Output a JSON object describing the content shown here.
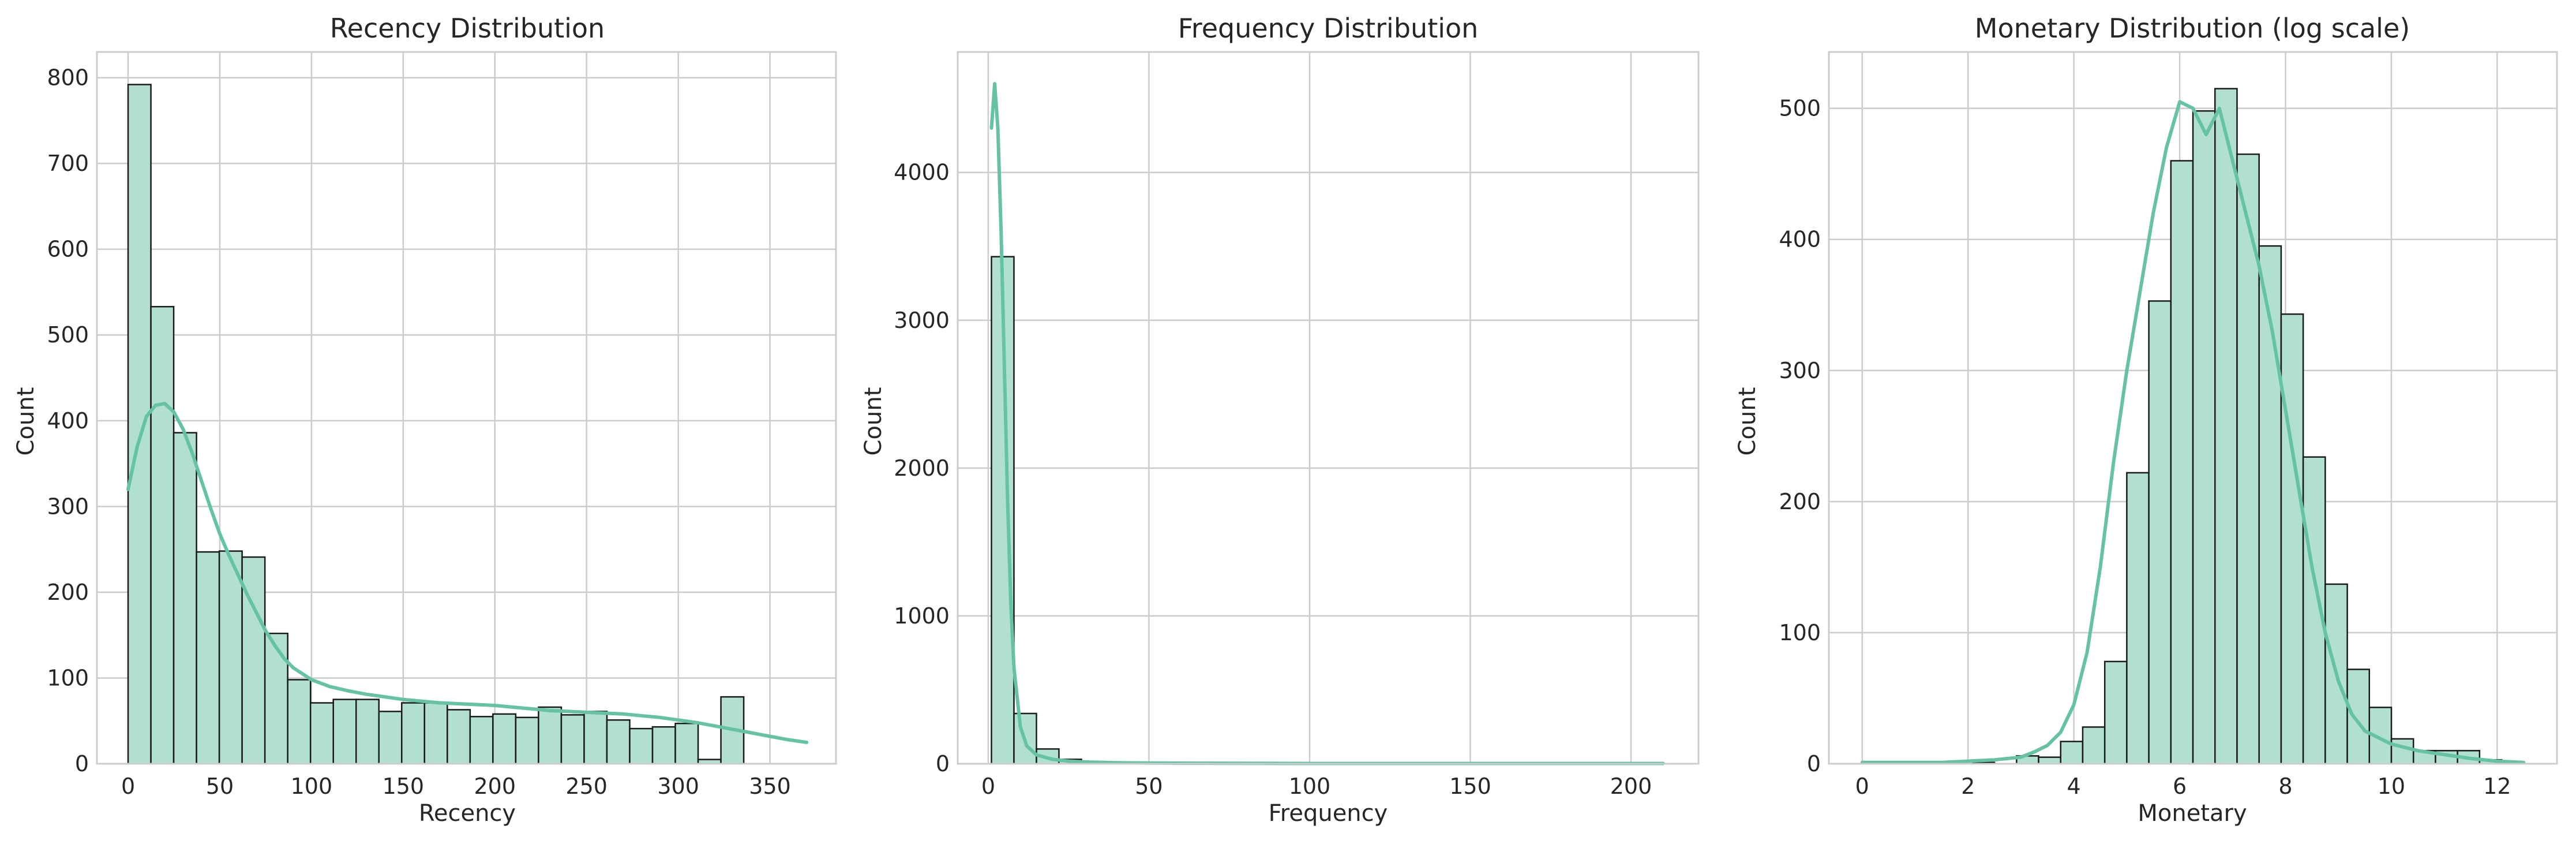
{
  "colors": {
    "bar_fill": "#b2e0cf",
    "bar_edge": "#1a1a1a",
    "kde": "#66c2a5",
    "grid": "#cccccc"
  },
  "chart_data": [
    {
      "type": "bar",
      "title": "Recency Distribution",
      "xlabel": "Recency",
      "ylabel": "Count",
      "xlim": [
        -17,
        386
      ],
      "ylim": [
        0,
        830
      ],
      "xticks": [
        0,
        50,
        100,
        150,
        200,
        250,
        300,
        350
      ],
      "yticks": [
        0,
        100,
        200,
        300,
        400,
        500,
        600,
        700,
        800
      ],
      "grid": true,
      "bins": {
        "start": 0,
        "width": 12.4333
      },
      "values": [
        792,
        533,
        386,
        247,
        248,
        241,
        152,
        98,
        71,
        75,
        75,
        61,
        71,
        71,
        63,
        55,
        58,
        54,
        66,
        57,
        61,
        51,
        41,
        43,
        47,
        5,
        78
      ],
      "kde": {
        "x": [
          0,
          5,
          10,
          15,
          20,
          25,
          30,
          35,
          40,
          45,
          50,
          55,
          60,
          65,
          70,
          75,
          80,
          85,
          90,
          100,
          110,
          120,
          130,
          140,
          150,
          160,
          170,
          180,
          190,
          200,
          210,
          220,
          230,
          240,
          250,
          260,
          270,
          280,
          290,
          300,
          310,
          320,
          330,
          340,
          350,
          360,
          370
        ],
        "y": [
          320,
          370,
          405,
          418,
          420,
          410,
          390,
          362,
          330,
          298,
          268,
          243,
          220,
          197,
          176,
          155,
          138,
          123,
          112,
          98,
          90,
          85,
          81,
          78,
          75,
          73,
          71,
          70,
          69,
          68,
          66,
          64,
          62,
          61,
          60,
          59,
          58,
          56,
          54,
          51,
          48,
          44,
          40,
          36,
          32,
          28,
          25
        ]
      }
    },
    {
      "type": "bar",
      "title": "Frequency Distribution",
      "xlabel": "Frequency",
      "ylabel": "Count",
      "xlim": [
        -9.5,
        221
      ],
      "ylim": [
        0,
        4815
      ],
      "xticks": [
        0,
        50,
        100,
        150,
        200
      ],
      "yticks": [
        0,
        1000,
        2000,
        3000,
        4000
      ],
      "grid": true,
      "bins": {
        "start": 1,
        "width": 7.0
      },
      "values": [
        3430,
        340,
        100,
        30,
        15,
        10,
        6,
        4,
        3,
        2,
        2,
        1,
        1,
        1,
        1,
        1,
        1,
        1,
        0,
        0,
        1,
        0,
        0,
        0,
        0,
        0,
        0,
        0,
        0,
        1
      ],
      "kde": {
        "x": [
          1,
          1.5,
          2,
          3,
          4,
          5,
          6,
          7,
          8,
          10,
          12,
          15,
          20,
          25,
          30,
          40,
          50,
          60,
          80,
          100,
          120,
          150,
          180,
          210
        ],
        "y": [
          4300,
          4450,
          4600,
          4300,
          3600,
          2700,
          1800,
          1100,
          650,
          250,
          120,
          60,
          30,
          18,
          12,
          7,
          5,
          4,
          3,
          2,
          2,
          2,
          2,
          2
        ]
      }
    },
    {
      "type": "bar",
      "title": "Monetary Distribution (log scale)",
      "xlabel": "Monetary",
      "ylabel": "Count",
      "xlim": [
        -0.63,
        13.13
      ],
      "ylim": [
        0,
        543
      ],
      "xticks": [
        0,
        2,
        4,
        6,
        8,
        10,
        12
      ],
      "yticks": [
        0,
        100,
        200,
        300,
        400,
        500
      ],
      "grid": true,
      "bins": {
        "start": 0,
        "width": 0.4167
      },
      "values": [
        1,
        0,
        0,
        0,
        0,
        1,
        0,
        6,
        5,
        17,
        28,
        78,
        222,
        353,
        460,
        498,
        515,
        465,
        395,
        343,
        234,
        137,
        72,
        43,
        19,
        10,
        10,
        10,
        3,
        0
      ],
      "kde": {
        "x": [
          0,
          0.5,
          1,
          1.5,
          2,
          2.5,
          3,
          3.25,
          3.5,
          3.75,
          4,
          4.25,
          4.5,
          4.75,
          5,
          5.25,
          5.5,
          5.75,
          6,
          6.25,
          6.5,
          6.75,
          7,
          7.25,
          7.5,
          7.75,
          8,
          8.25,
          8.5,
          8.75,
          9,
          9.25,
          9.5,
          10,
          10.5,
          11,
          11.5,
          12,
          12.5
        ],
        "y": [
          1,
          1,
          1,
          1,
          2,
          3,
          5,
          9,
          14,
          24,
          45,
          85,
          150,
          230,
          300,
          360,
          420,
          470,
          505,
          500,
          480,
          500,
          460,
          420,
          380,
          330,
          270,
          210,
          150,
          100,
          63,
          38,
          25,
          15,
          10,
          7,
          4,
          2,
          1
        ]
      }
    }
  ]
}
